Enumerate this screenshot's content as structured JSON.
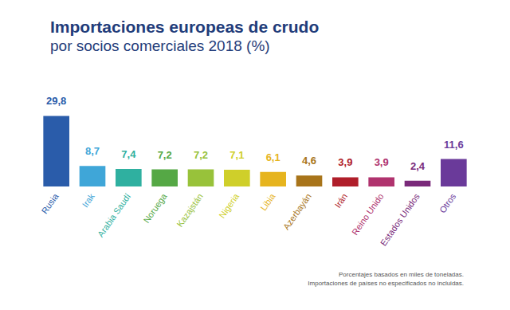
{
  "chart_data": {
    "type": "bar",
    "title": "Importaciones europeas de crudo",
    "subtitle": "por socios comerciales 2018 (%)",
    "categories": [
      "Rusia",
      "Irak",
      "Arabia Saudí",
      "Noruega",
      "Kazajstán",
      "Nigeria",
      "Libia",
      "Azerbayán",
      "Irán",
      "Reino Unido",
      "Estados Unidos",
      "Otros"
    ],
    "values": [
      29.8,
      8.7,
      7.4,
      7.2,
      7.2,
      7.1,
      6.1,
      4.6,
      3.9,
      3.9,
      2.4,
      11.6
    ],
    "value_labels": [
      "29,8",
      "8,7",
      "7,4",
      "7,2",
      "7,2",
      "7,1",
      "6,1",
      "4,6",
      "3,9",
      "3,9",
      "2,4",
      "11,6"
    ],
    "colors": [
      "#2a5caa",
      "#3fa6d8",
      "#2fb0a0",
      "#55a845",
      "#98c23a",
      "#cfcf2a",
      "#e6b41e",
      "#a8741a",
      "#b01e2a",
      "#b0336e",
      "#7a2a7a",
      "#6a3a9a"
    ],
    "ylim": [
      0,
      35
    ],
    "grid": false,
    "data_labels": true,
    "tick_labels": "x",
    "annotations": [
      "Porcentajes basados en miles de toneladas.",
      "Importaciones de países no especificados no incluidas."
    ]
  }
}
